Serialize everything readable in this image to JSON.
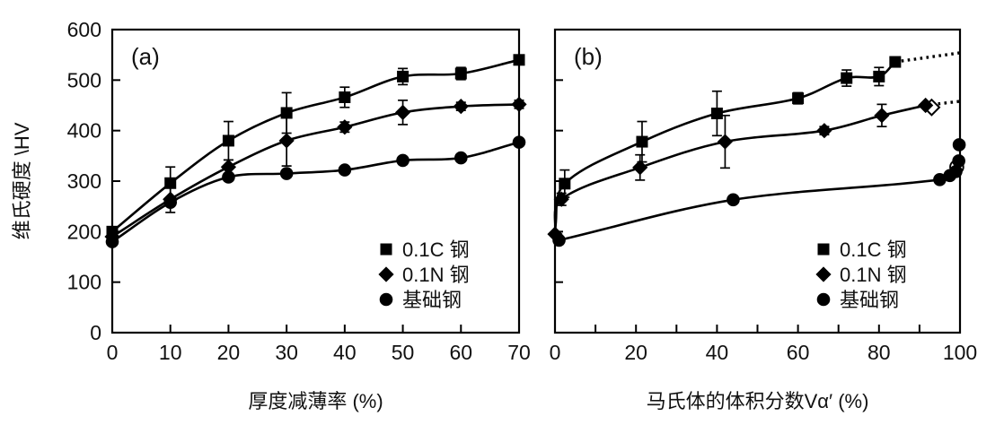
{
  "figure": {
    "background": "#ffffff",
    "ink": "#000000",
    "ylabel": "维氏硬度 \\HV"
  },
  "chart_data": [
    {
      "type": "line",
      "panel_label": "(a)",
      "xlabel": "厚度减薄率 (%)",
      "ylabel": "维氏硬度 \\HV",
      "xlim": [
        0,
        70
      ],
      "ylim": [
        0,
        600
      ],
      "xticks_labeled": [
        0,
        10,
        20,
        30,
        40,
        50,
        60,
        70
      ],
      "xticks_marks": [
        10,
        20,
        30,
        40,
        50,
        60
      ],
      "yticks_labeled": [
        0,
        100,
        200,
        300,
        400,
        500,
        600
      ],
      "yticks_marks": [
        100,
        200,
        300,
        400,
        500
      ],
      "show_ytick_labels": true,
      "grid": false,
      "legend_position": "lower right",
      "legend": [
        {
          "marker": "square",
          "label": "0.1C 钢"
        },
        {
          "marker": "diamond",
          "label": "0.1N 钢"
        },
        {
          "marker": "circle",
          "label": "基础钢"
        }
      ],
      "series": [
        {
          "name": "0.1C 钢",
          "marker": "square",
          "points": [
            [
              0,
              200,
              null
            ],
            [
              10,
              296,
              32
            ],
            [
              20,
              380,
              38
            ],
            [
              30,
              435,
              40
            ],
            [
              40,
              466,
              20
            ],
            [
              50,
              507,
              16
            ],
            [
              60,
              513,
              12
            ],
            [
              70,
              540,
              null
            ]
          ]
        },
        {
          "name": "0.1N 钢",
          "marker": "diamond",
          "points": [
            [
              0,
              190,
              null
            ],
            [
              10,
              264,
              26
            ],
            [
              20,
              328,
              14
            ],
            [
              30,
              380,
              50
            ],
            [
              40,
              407,
              10
            ],
            [
              50,
              436,
              24
            ],
            [
              60,
              448,
              8
            ],
            [
              70,
              452,
              8
            ]
          ]
        },
        {
          "name": "基础钢",
          "marker": "circle",
          "points": [
            [
              0,
              180,
              null
            ],
            [
              10,
              258,
              null
            ],
            [
              20,
              308,
              null
            ],
            [
              30,
              315,
              null
            ],
            [
              40,
              322,
              null
            ],
            [
              50,
              341,
              null
            ],
            [
              60,
              346,
              null
            ],
            [
              70,
              377,
              null
            ]
          ]
        }
      ],
      "open_markers": []
    },
    {
      "type": "line",
      "panel_label": "(b)",
      "xlabel": "马氏体的体积分数Vα′ (%)",
      "ylabel": "维氏硬度 \\HV",
      "xlim": [
        0,
        100
      ],
      "ylim": [
        0,
        600
      ],
      "xticks_labeled": [
        0,
        20,
        40,
        60,
        80,
        100
      ],
      "xticks_marks": [
        10,
        20,
        30,
        40,
        50,
        60,
        70,
        80,
        90
      ],
      "yticks_labeled": [],
      "yticks_marks": [
        100,
        200,
        300,
        400,
        500
      ],
      "show_ytick_labels": false,
      "grid": false,
      "legend_position": "lower right",
      "legend": [
        {
          "marker": "square",
          "label": "0.1C 钢"
        },
        {
          "marker": "diamond",
          "label": "0.1N 钢"
        },
        {
          "marker": "circle",
          "label": "基础钢"
        }
      ],
      "series": [
        {
          "name": "0.1C 钢",
          "marker": "square",
          "points": [
            [
              2.4,
              295,
              27
            ],
            [
              21.5,
              378,
              40
            ],
            [
              40,
              434,
              44
            ],
            [
              60,
              464,
              11
            ],
            [
              72,
              504,
              16
            ],
            [
              80,
              507,
              18
            ],
            [
              84,
              536,
              null
            ]
          ],
          "line_points": [
            [
              0,
              205
            ],
            [
              2.4,
              295
            ],
            [
              21.5,
              378
            ],
            [
              40,
              434
            ],
            [
              60,
              464
            ],
            [
              72,
              504
            ],
            [
              80,
              507
            ],
            [
              84,
              536
            ]
          ],
          "dotted": [
            [
              84,
              536
            ],
            [
              100,
              554
            ]
          ]
        },
        {
          "name": "0.1N 钢",
          "marker": "diamond",
          "points": [
            [
              0,
              195,
              null
            ],
            [
              1.6,
              264,
              12
            ],
            [
              21,
              327,
              25
            ],
            [
              42,
              378,
              52
            ],
            [
              66.5,
              400,
              8
            ],
            [
              80.7,
              430,
              22
            ],
            [
              91.5,
              450,
              null
            ]
          ],
          "dotted": [
            [
              91.5,
              450
            ],
            [
              100,
              458
            ]
          ]
        },
        {
          "name": "基础钢",
          "marker": "circle",
          "points": [
            [
              1,
              183,
              null
            ],
            [
              44,
              263,
              null
            ],
            [
              95,
              303,
              null
            ],
            [
              97.5,
              311,
              null
            ],
            [
              99,
              319,
              null
            ],
            [
              99.7,
              340,
              null
            ],
            [
              99.8,
              372,
              null
            ]
          ],
          "line_points": [
            [
              1,
              183
            ],
            [
              44,
              263
            ],
            [
              95,
              303
            ],
            [
              100,
              325
            ]
          ]
        }
      ],
      "open_markers": [
        {
          "shape": "circle",
          "x": 99.2,
          "y": 328
        },
        {
          "shape": "diamond",
          "x": 93,
          "y": 446
        }
      ]
    }
  ]
}
